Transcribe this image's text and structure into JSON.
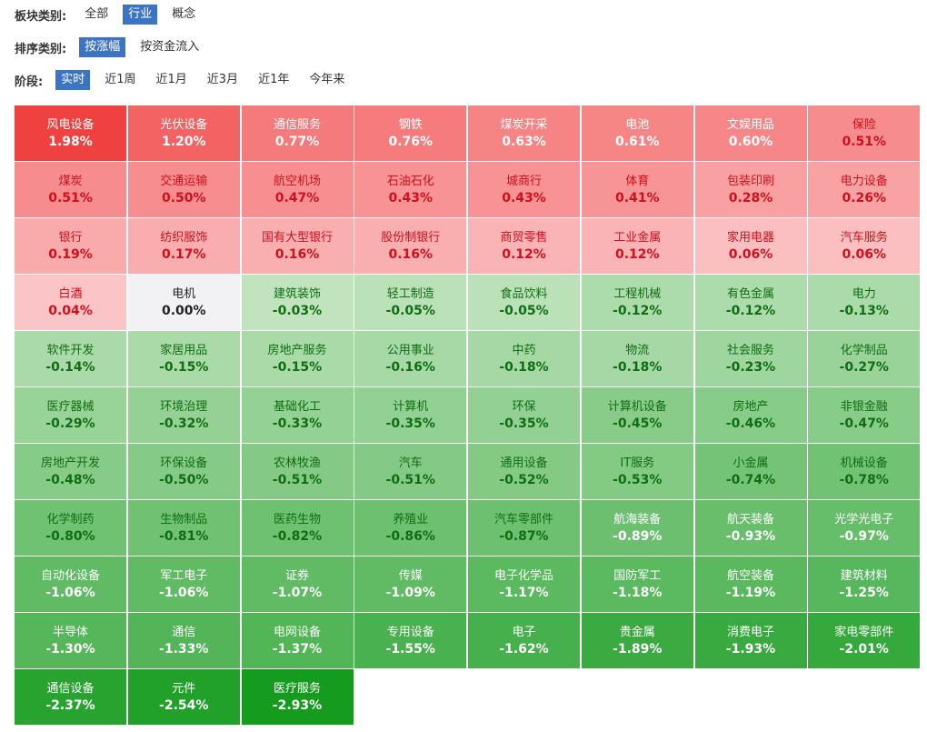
{
  "filters": [
    {
      "label": "板块类别:",
      "options": [
        "全部",
        "行业",
        "概念"
      ],
      "selected": 1
    },
    {
      "label": "排序类别:",
      "options": [
        "按涨幅",
        "按资金流入"
      ],
      "selected": 0
    },
    {
      "label": "阶段:",
      "options": [
        "实时",
        "近1周",
        "近1月",
        "近3月",
        "近1年",
        "今年来"
      ],
      "selected": 0
    }
  ],
  "tiles": [
    [
      "风电设备",
      "1.98%"
    ],
    [
      "光伏设备",
      "1.20%"
    ],
    [
      "通信服务",
      "0.77%"
    ],
    [
      "钢铁",
      "0.76%"
    ],
    [
      "煤炭开采",
      "0.63%"
    ],
    [
      "电池",
      "0.61%"
    ],
    [
      "文娱用品",
      "0.60%"
    ],
    [
      "保险",
      "0.51%"
    ],
    [
      "煤炭",
      "0.51%"
    ],
    [
      "交通运输",
      "0.50%"
    ],
    [
      "航空机场",
      "0.47%"
    ],
    [
      "石油石化",
      "0.43%"
    ],
    [
      "城商行",
      "0.43%"
    ],
    [
      "体育",
      "0.41%"
    ],
    [
      "包装印刷",
      "0.28%"
    ],
    [
      "电力设备",
      "0.26%"
    ],
    [
      "银行",
      "0.19%"
    ],
    [
      "纺织服饰",
      "0.17%"
    ],
    [
      "国有大型银行",
      "0.16%"
    ],
    [
      "股份制银行",
      "0.16%"
    ],
    [
      "商贸零售",
      "0.12%"
    ],
    [
      "工业金属",
      "0.12%"
    ],
    [
      "家用电器",
      "0.06%"
    ],
    [
      "汽车服务",
      "0.06%"
    ],
    [
      "白酒",
      "0.04%"
    ],
    [
      "电机",
      "0.00%"
    ],
    [
      "建筑装饰",
      "-0.03%"
    ],
    [
      "轻工制造",
      "-0.05%"
    ],
    [
      "食品饮料",
      "-0.05%"
    ],
    [
      "工程机械",
      "-0.12%"
    ],
    [
      "有色金属",
      "-0.12%"
    ],
    [
      "电力",
      "-0.13%"
    ],
    [
      "软件开发",
      "-0.14%"
    ],
    [
      "家居用品",
      "-0.15%"
    ],
    [
      "房地产服务",
      "-0.15%"
    ],
    [
      "公用事业",
      "-0.16%"
    ],
    [
      "中药",
      "-0.18%"
    ],
    [
      "物流",
      "-0.18%"
    ],
    [
      "社会服务",
      "-0.23%"
    ],
    [
      "化学制品",
      "-0.27%"
    ],
    [
      "医疗器械",
      "-0.29%"
    ],
    [
      "环境治理",
      "-0.32%"
    ],
    [
      "基础化工",
      "-0.33%"
    ],
    [
      "计算机",
      "-0.35%"
    ],
    [
      "环保",
      "-0.35%"
    ],
    [
      "计算机设备",
      "-0.45%"
    ],
    [
      "房地产",
      "-0.46%"
    ],
    [
      "非银金融",
      "-0.47%"
    ],
    [
      "房地产开发",
      "-0.48%"
    ],
    [
      "环保设备",
      "-0.50%"
    ],
    [
      "农林牧渔",
      "-0.51%"
    ],
    [
      "汽车",
      "-0.51%"
    ],
    [
      "通用设备",
      "-0.52%"
    ],
    [
      "IT服务",
      "-0.53%"
    ],
    [
      "小金属",
      "-0.74%"
    ],
    [
      "机械设备",
      "-0.78%"
    ],
    [
      "化学制药",
      "-0.80%"
    ],
    [
      "生物制品",
      "-0.81%"
    ],
    [
      "医药生物",
      "-0.82%"
    ],
    [
      "养殖业",
      "-0.86%"
    ],
    [
      "汽车零部件",
      "-0.87%"
    ],
    [
      "航海装备",
      "-0.89%"
    ],
    [
      "航天装备",
      "-0.93%"
    ],
    [
      "光学光电子",
      "-0.97%"
    ],
    [
      "自动化设备",
      "-1.06%"
    ],
    [
      "军工电子",
      "-1.06%"
    ],
    [
      "证券",
      "-1.07%"
    ],
    [
      "传媒",
      "-1.09%"
    ],
    [
      "电子化学品",
      "-1.17%"
    ],
    [
      "国防军工",
      "-1.18%"
    ],
    [
      "航空装备",
      "-1.19%"
    ],
    [
      "建筑材料",
      "-1.25%"
    ],
    [
      "半导体",
      "-1.30%"
    ],
    [
      "通信",
      "-1.33%"
    ],
    [
      "电网设备",
      "-1.37%"
    ],
    [
      "专用设备",
      "-1.55%"
    ],
    [
      "电子",
      "-1.62%"
    ],
    [
      "贵金属",
      "-1.89%"
    ],
    [
      "消费电子",
      "-1.93%"
    ],
    [
      "家电零部件",
      "-2.01%"
    ],
    [
      "通信设备",
      "-2.37%"
    ],
    [
      "元件",
      "-2.54%"
    ],
    [
      "医疗服务",
      "-2.93%"
    ]
  ]
}
